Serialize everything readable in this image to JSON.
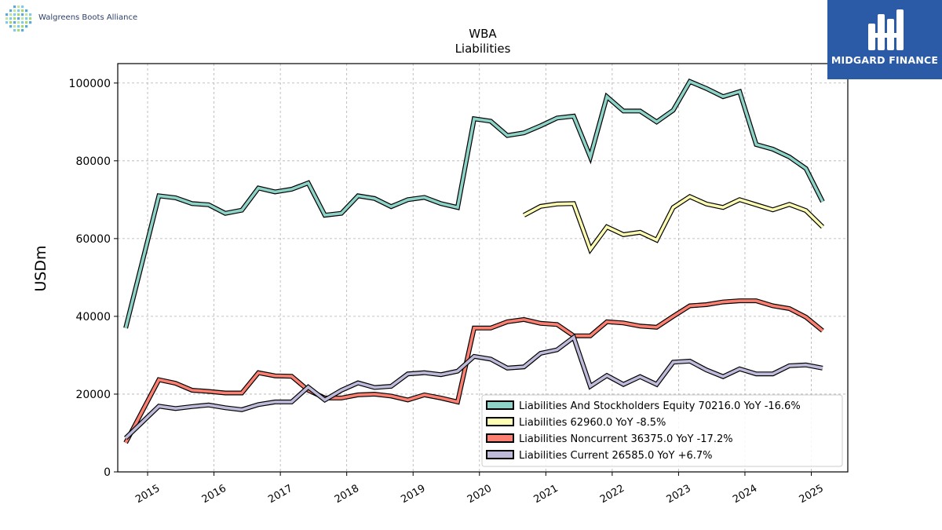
{
  "header": {
    "company_logo_text": "Walgreens Boots Alliance",
    "brand_text": "MIDGARD FINANCE"
  },
  "chart_data": {
    "type": "line",
    "title": "WBA",
    "subtitle": "Liabilities",
    "ylabel": "USDm",
    "xlabel": "",
    "ylim": [
      0,
      105000
    ],
    "xlim": [
      2014.55,
      2025.55
    ],
    "yticks": [
      0,
      20000,
      40000,
      60000,
      80000,
      100000
    ],
    "xticks": [
      "2015",
      "2016",
      "2017",
      "2018",
      "2019",
      "2020",
      "2021",
      "2022",
      "2023",
      "2024",
      "2025"
    ],
    "grid": true,
    "legend_position": "bottom-right",
    "series": [
      {
        "name": "Liabilities And Stockholders Equity",
        "legend_label": "Liabilities And Stockholders Equity  70216.0 YoY -16.6%",
        "color": "#8dd3c7",
        "points": [
          [
            2014.67,
            37000
          ],
          [
            2015.17,
            71000
          ],
          [
            2015.42,
            70500
          ],
          [
            2015.67,
            69000
          ],
          [
            2015.92,
            68700
          ],
          [
            2016.17,
            66500
          ],
          [
            2016.42,
            67300
          ],
          [
            2016.67,
            73000
          ],
          [
            2016.92,
            72000
          ],
          [
            2017.17,
            72700
          ],
          [
            2017.42,
            74300
          ],
          [
            2017.67,
            66000
          ],
          [
            2017.92,
            66500
          ],
          [
            2018.17,
            71000
          ],
          [
            2018.42,
            70300
          ],
          [
            2018.67,
            68200
          ],
          [
            2018.92,
            70000
          ],
          [
            2019.17,
            70600
          ],
          [
            2019.42,
            69000
          ],
          [
            2019.67,
            68000
          ],
          [
            2019.92,
            90800
          ],
          [
            2020.17,
            90200
          ],
          [
            2020.42,
            86500
          ],
          [
            2020.67,
            87200
          ],
          [
            2020.92,
            89000
          ],
          [
            2021.17,
            91000
          ],
          [
            2021.42,
            91500
          ],
          [
            2021.67,
            81000
          ],
          [
            2021.92,
            96500
          ],
          [
            2022.17,
            92800
          ],
          [
            2022.42,
            92800
          ],
          [
            2022.67,
            90000
          ],
          [
            2022.92,
            93000
          ],
          [
            2023.17,
            100400
          ],
          [
            2023.42,
            98600
          ],
          [
            2023.67,
            96500
          ],
          [
            2023.92,
            97800
          ],
          [
            2024.17,
            84200
          ],
          [
            2024.42,
            83000
          ],
          [
            2024.67,
            81000
          ],
          [
            2024.92,
            78000
          ],
          [
            2025.17,
            69500
          ]
        ]
      },
      {
        "name": "Liabilities",
        "legend_label": "Liabilities  62960.0 YoY -8.5%",
        "color": "#ffffb3",
        "points": [
          [
            2020.67,
            66000
          ],
          [
            2020.92,
            68300
          ],
          [
            2021.17,
            68900
          ],
          [
            2021.42,
            69000
          ],
          [
            2021.67,
            57200
          ],
          [
            2021.92,
            63000
          ],
          [
            2022.17,
            61000
          ],
          [
            2022.42,
            61600
          ],
          [
            2022.67,
            59600
          ],
          [
            2022.92,
            68000
          ],
          [
            2023.17,
            70800
          ],
          [
            2023.42,
            68900
          ],
          [
            2023.67,
            68000
          ],
          [
            2023.92,
            70000
          ],
          [
            2024.17,
            68700
          ],
          [
            2024.42,
            67400
          ],
          [
            2024.67,
            68800
          ],
          [
            2024.92,
            67200
          ],
          [
            2025.17,
            63000
          ]
        ]
      },
      {
        "name": "Liabilities Noncurrent",
        "legend_label": "Liabilities Noncurrent  36375.0 YoY -17.2%",
        "color": "#fb8072",
        "points": [
          [
            2014.67,
            7500
          ],
          [
            2015.17,
            23700
          ],
          [
            2015.42,
            22800
          ],
          [
            2015.67,
            21000
          ],
          [
            2015.92,
            20700
          ],
          [
            2016.17,
            20300
          ],
          [
            2016.42,
            20300
          ],
          [
            2016.67,
            25500
          ],
          [
            2016.92,
            24700
          ],
          [
            2017.17,
            24600
          ],
          [
            2017.42,
            21000
          ],
          [
            2017.67,
            19000
          ],
          [
            2017.92,
            19000
          ],
          [
            2018.17,
            19800
          ],
          [
            2018.42,
            20000
          ],
          [
            2018.67,
            19500
          ],
          [
            2018.92,
            18500
          ],
          [
            2019.17,
            19800
          ],
          [
            2019.42,
            19000
          ],
          [
            2019.67,
            18000
          ],
          [
            2019.92,
            37000
          ],
          [
            2020.17,
            37000
          ],
          [
            2020.42,
            38600
          ],
          [
            2020.67,
            39200
          ],
          [
            2020.92,
            38200
          ],
          [
            2021.17,
            37900
          ],
          [
            2021.42,
            35000
          ],
          [
            2021.67,
            35000
          ],
          [
            2021.92,
            38600
          ],
          [
            2022.17,
            38300
          ],
          [
            2022.42,
            37500
          ],
          [
            2022.67,
            37200
          ],
          [
            2022.92,
            40000
          ],
          [
            2023.17,
            42700
          ],
          [
            2023.42,
            43000
          ],
          [
            2023.67,
            43700
          ],
          [
            2023.92,
            44000
          ],
          [
            2024.17,
            44000
          ],
          [
            2024.42,
            42700
          ],
          [
            2024.67,
            42000
          ],
          [
            2024.92,
            39800
          ],
          [
            2025.17,
            36300
          ]
        ]
      },
      {
        "name": "Liabilities Current",
        "legend_label": "Liabilities Current  26585.0 YoY +6.7%",
        "color": "#bebada",
        "points": [
          [
            2014.67,
            8700
          ],
          [
            2015.17,
            16900
          ],
          [
            2015.42,
            16300
          ],
          [
            2015.67,
            16800
          ],
          [
            2015.92,
            17200
          ],
          [
            2016.17,
            16500
          ],
          [
            2016.42,
            16000
          ],
          [
            2016.67,
            17300
          ],
          [
            2016.92,
            18000
          ],
          [
            2017.17,
            18000
          ],
          [
            2017.42,
            21800
          ],
          [
            2017.67,
            18500
          ],
          [
            2017.92,
            21000
          ],
          [
            2018.17,
            22900
          ],
          [
            2018.42,
            21700
          ],
          [
            2018.67,
            22000
          ],
          [
            2018.92,
            25200
          ],
          [
            2019.17,
            25500
          ],
          [
            2019.42,
            25000
          ],
          [
            2019.67,
            25900
          ],
          [
            2019.92,
            29700
          ],
          [
            2020.17,
            29000
          ],
          [
            2020.42,
            26700
          ],
          [
            2020.67,
            27000
          ],
          [
            2020.92,
            30500
          ],
          [
            2021.17,
            31400
          ],
          [
            2021.42,
            34600
          ],
          [
            2021.67,
            22000
          ],
          [
            2021.92,
            24800
          ],
          [
            2022.17,
            22500
          ],
          [
            2022.42,
            24500
          ],
          [
            2022.67,
            22500
          ],
          [
            2022.92,
            28200
          ],
          [
            2023.17,
            28500
          ],
          [
            2023.42,
            26200
          ],
          [
            2023.67,
            24500
          ],
          [
            2023.92,
            26500
          ],
          [
            2024.17,
            25200
          ],
          [
            2024.42,
            25200
          ],
          [
            2024.67,
            27300
          ],
          [
            2024.92,
            27500
          ],
          [
            2025.17,
            26700
          ]
        ]
      }
    ]
  }
}
